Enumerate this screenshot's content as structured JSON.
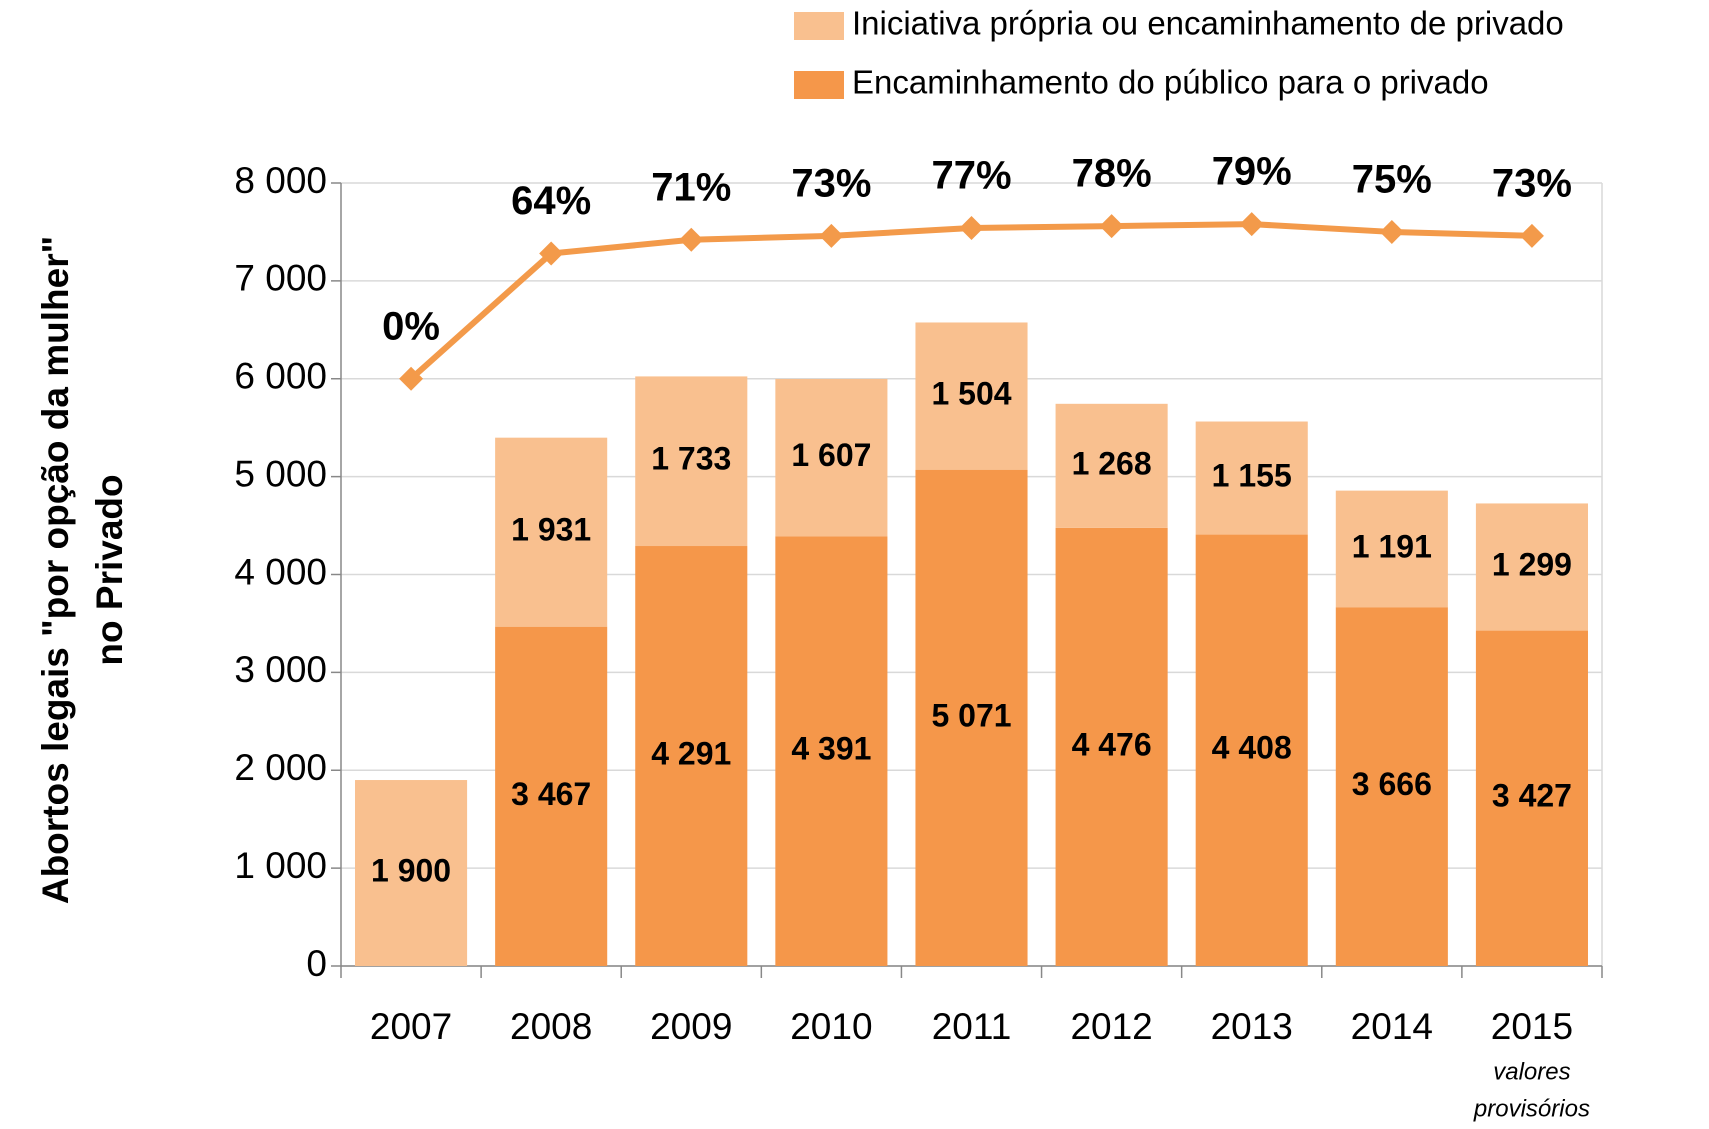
{
  "chart_data": {
    "type": "bar",
    "stacked": true,
    "ylabel": [
      "Abortos legais \"por opção da mulher\"",
      "no Privado"
    ],
    "categories": [
      "2007",
      "2008",
      "2009",
      "2010",
      "2011",
      "2012",
      "2013",
      "2014",
      "2015"
    ],
    "annotation": [
      "valores",
      "provisórios"
    ],
    "ylim": [
      0,
      8000
    ],
    "yticks": [
      0,
      {
        "value": 1000,
        "label": "1 000"
      },
      {
        "value": 2000,
        "label": "2 000"
      },
      {
        "value": 3000,
        "label": "3 000"
      },
      {
        "value": 4000,
        "label": "4 000"
      },
      {
        "value": 5000,
        "label": "5 000"
      },
      {
        "value": 6000,
        "label": "6 000"
      },
      {
        "value": 7000,
        "label": "7 000"
      },
      {
        "value": 8000,
        "label": "8 000"
      }
    ],
    "y2lim": [
      -300,
      100
    ],
    "grid": true,
    "legend": "top-right",
    "series": [
      {
        "name": "Encaminhamento do público para o privado",
        "color": "#f5974a",
        "values": [
          null,
          3467,
          4291,
          4391,
          5071,
          4476,
          4408,
          3666,
          3427
        ],
        "value_labels": [
          null,
          "3 467",
          "4 291",
          "4 391",
          "5 071",
          "4 476",
          "4 408",
          "3 666",
          "3 427"
        ]
      },
      {
        "name": "Iniciativa própria ou encaminhamento de privado",
        "color": "#f9c08f",
        "values": [
          1900,
          1931,
          1733,
          1607,
          1504,
          1268,
          1155,
          1191,
          1299
        ],
        "value_labels": [
          "1 900",
          "1 931",
          "1 733",
          "1 607",
          "1 504",
          "1 268",
          "1 155",
          "1 191",
          "1 299"
        ]
      },
      {
        "type": "line",
        "axis": "y2",
        "color": "#f39a4a",
        "values": [
          0,
          64,
          71,
          73,
          77,
          78,
          79,
          75,
          73
        ],
        "value_labels": [
          "0%",
          "64%",
          "71%",
          "73%",
          "77%",
          "78%",
          "79%",
          "75%",
          "73%"
        ]
      }
    ]
  }
}
